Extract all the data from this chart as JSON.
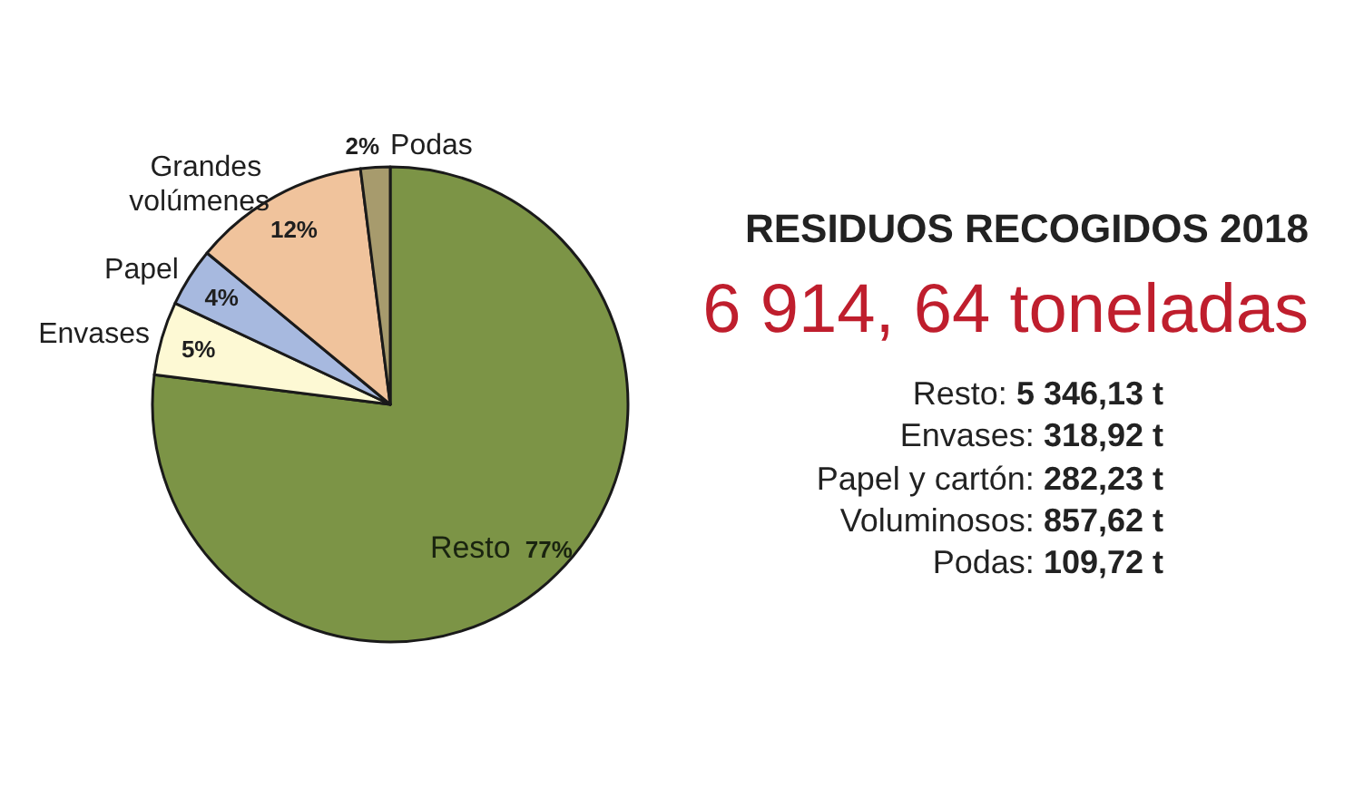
{
  "chart_data": {
    "type": "pie",
    "title": "RESIDUOS RECOGIDOS 2018",
    "subtitle": "6 914, 64 toneladas",
    "categories": [
      "Resto",
      "Envases",
      "Papel",
      "Grandes volúmenes",
      "Podas"
    ],
    "values": [
      77,
      5,
      4,
      12,
      2
    ],
    "colors": [
      "#7c9446",
      "#fdf9d4",
      "#a7b9df",
      "#f0c39c",
      "#a79b6d"
    ],
    "value_labels": [
      "77%",
      "5%",
      "4%",
      "12%",
      "2%"
    ],
    "annotations": [
      "Resto: 5 346,13 t",
      "Envases: 318,92 t",
      "Papel y cartón: 282,23 t",
      "Voluminosos: 857,62 t",
      "Podas: 109,72 t"
    ]
  }
}
